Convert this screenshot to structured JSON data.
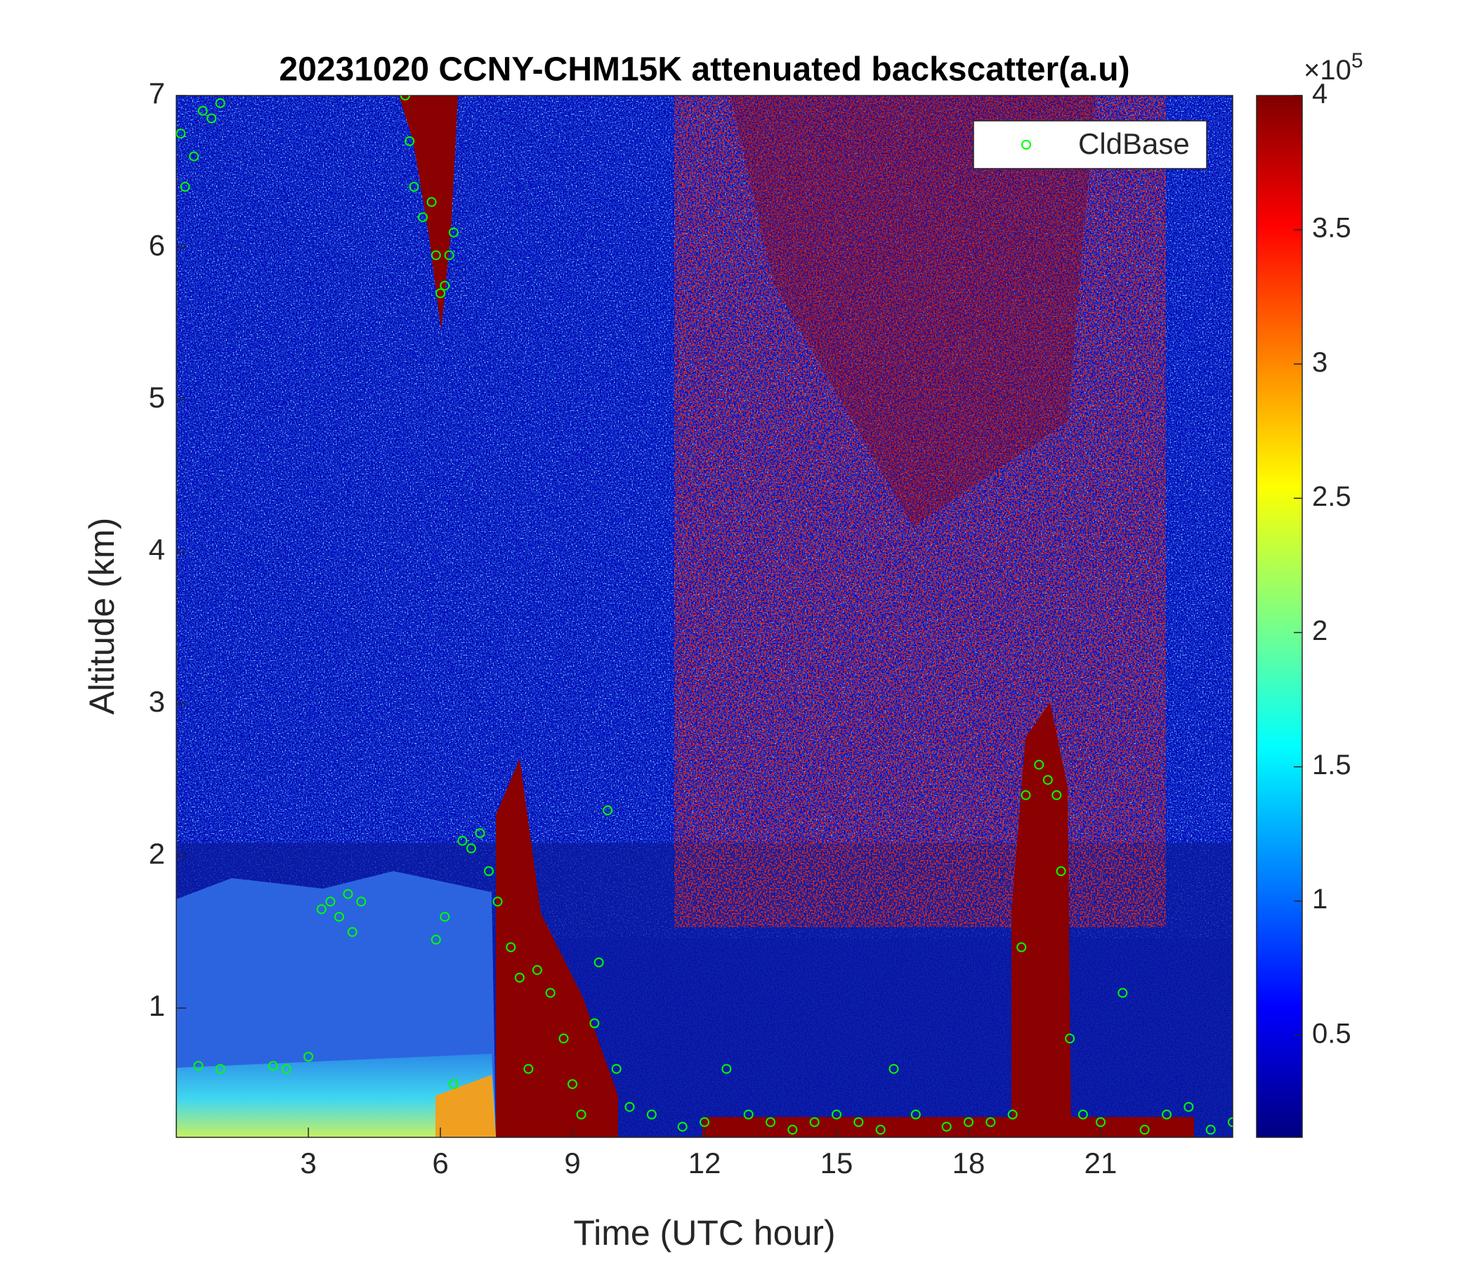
{
  "chart_data": {
    "type": "scatter",
    "title": "20231020 CCNY-CHM15K attenuated backscatter(a.u)",
    "x_label": "Time (UTC hour)",
    "y_label": "Altitude (km)",
    "xlim": [
      0,
      24
    ],
    "xticks": [
      3,
      6,
      9,
      12,
      15,
      18,
      21
    ],
    "ylim": [
      0.15,
      7
    ],
    "yticks": [
      1,
      2,
      3,
      4,
      5,
      6,
      7
    ],
    "legend": "upper right",
    "colormap": "jet",
    "clim": [
      0.12,
      4
    ],
    "cticks": [
      0.5,
      1,
      1.5,
      2,
      2.5,
      3,
      3.5,
      4
    ],
    "colorbar_multiplier": {
      "base": "×10",
      "exponent": "5"
    },
    "series": [
      {
        "name": "CldBase",
        "color": "#00ff00",
        "x": [
          0.1,
          0.2,
          0.4,
          0.6,
          0.8,
          1.0,
          0.5,
          1.0,
          2.2,
          2.5,
          3.0,
          3.3,
          3.5,
          3.7,
          3.9,
          4.0,
          4.2,
          5.2,
          5.3,
          5.4,
          5.6,
          5.8,
          5.9,
          6.0,
          6.1,
          6.2,
          6.3,
          5.9,
          6.1,
          6.3,
          6.5,
          6.7,
          6.9,
          7.1,
          7.3,
          7.6,
          7.8,
          8.0,
          8.2,
          8.5,
          8.8,
          9.0,
          9.2,
          9.5,
          9.6,
          9.8,
          10.0,
          10.3,
          10.8,
          11.5,
          12.0,
          12.5,
          13.0,
          13.5,
          14.0,
          14.5,
          15.0,
          15.5,
          16.0,
          16.3,
          16.8,
          17.5,
          18.0,
          18.5,
          19.0,
          19.2,
          19.3,
          19.6,
          19.8,
          20.0,
          20.1,
          20.3,
          20.6,
          21.0,
          21.5,
          22.0,
          22.5,
          23.0,
          23.5,
          24.0
        ],
        "values": [
          6.75,
          6.4,
          6.6,
          6.9,
          6.85,
          6.95,
          0.62,
          0.6,
          0.62,
          0.6,
          0.68,
          1.65,
          1.7,
          1.6,
          1.75,
          1.5,
          1.7,
          7.0,
          6.7,
          6.4,
          6.2,
          6.3,
          5.95,
          5.7,
          5.75,
          5.95,
          6.1,
          1.45,
          1.6,
          0.5,
          2.1,
          2.05,
          2.15,
          1.9,
          1.7,
          1.4,
          1.2,
          0.6,
          1.25,
          1.1,
          0.8,
          0.5,
          0.3,
          0.9,
          1.3,
          2.3,
          0.6,
          0.35,
          0.3,
          0.22,
          0.25,
          0.6,
          0.3,
          0.25,
          0.2,
          0.25,
          0.3,
          0.25,
          0.2,
          0.6,
          0.3,
          0.22,
          0.25,
          0.25,
          0.3,
          1.4,
          2.4,
          2.6,
          2.5,
          2.4,
          1.9,
          0.8,
          0.3,
          0.25,
          1.1,
          0.2,
          0.3,
          0.35,
          0.2,
          0.25
        ]
      }
    ]
  }
}
